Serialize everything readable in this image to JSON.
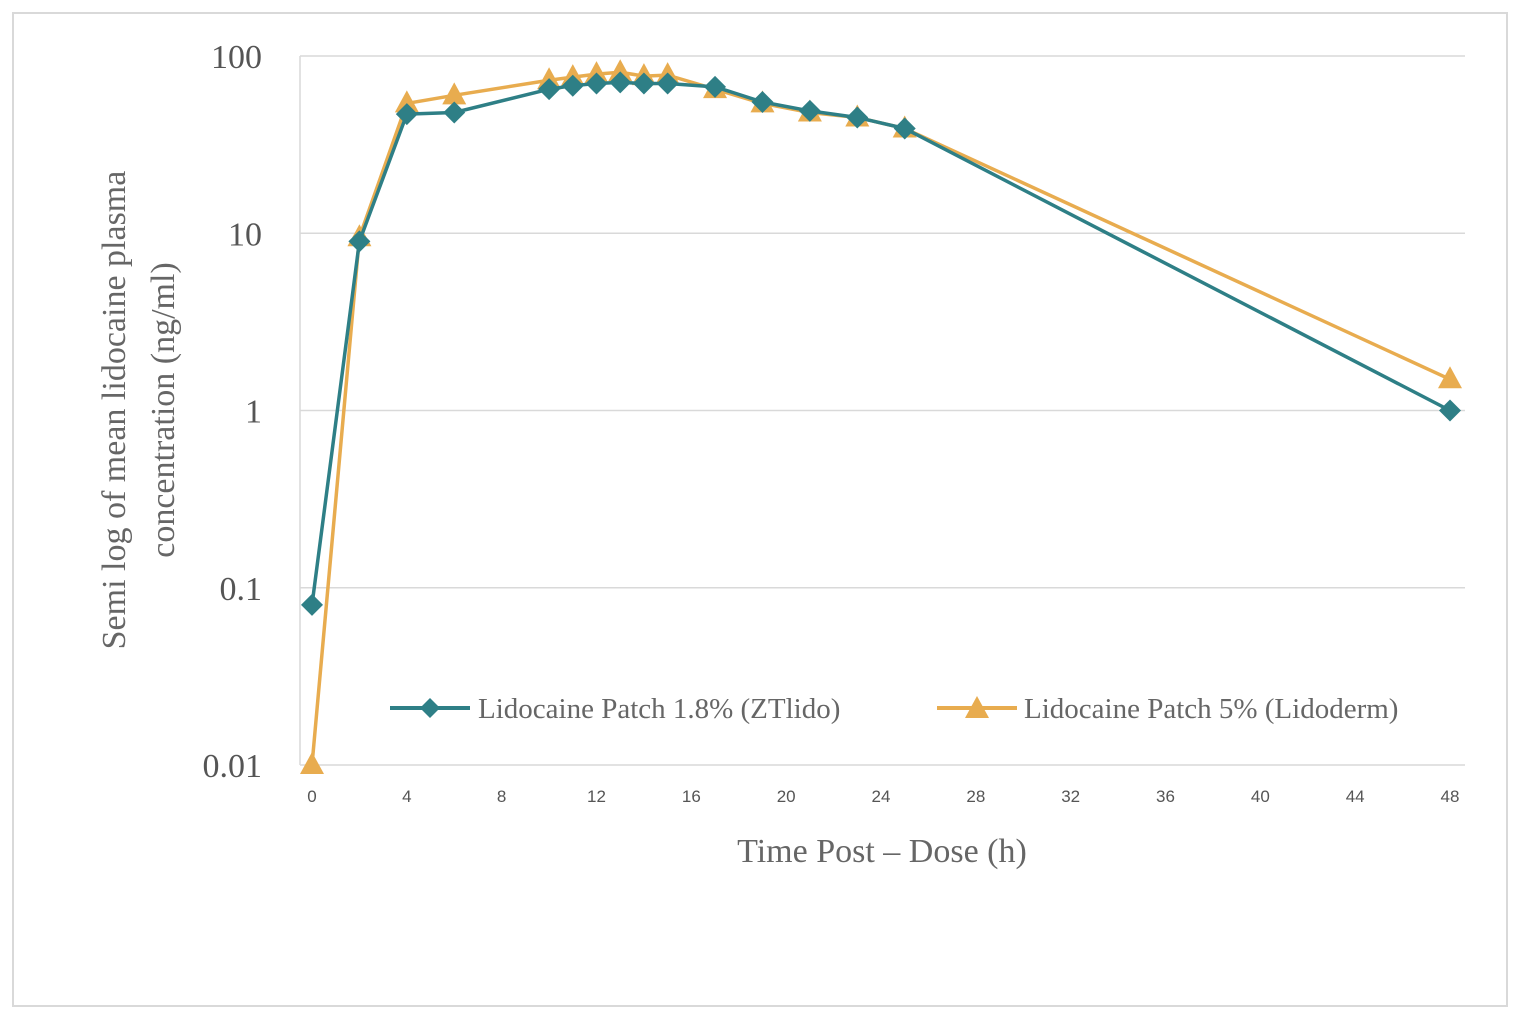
{
  "chart_data": {
    "type": "line",
    "title": "",
    "xlabel": "Time Post – Dose (h)",
    "ylabel_lines": [
      "Semi log of mean lidocaine plasma",
      "concentration (ng/ml)"
    ],
    "yscale": "log",
    "ylim": [
      0.01,
      100
    ],
    "xlim": [
      0,
      48
    ],
    "x_ticks": [
      "0",
      "4",
      "8",
      "12",
      "16",
      "20",
      "24",
      "28",
      "32",
      "36",
      "40",
      "44",
      "48"
    ],
    "y_ticks": [
      "100",
      "10",
      "1",
      "0.1",
      "0.01"
    ],
    "grid": "horizontal",
    "legend_position": "bottom-right",
    "series": [
      {
        "name": "Lidocaine Patch 1.8% (ZTlido)",
        "color": "#2e7f86",
        "marker": "diamond",
        "x": [
          0,
          2,
          4,
          6,
          10,
          11,
          12,
          13,
          14,
          15,
          17,
          19,
          21,
          23,
          25,
          48
        ],
        "y": [
          0.08,
          9,
          47,
          48,
          65,
          68,
          70,
          71,
          70,
          70,
          67,
          55,
          49,
          45,
          39,
          1.0
        ]
      },
      {
        "name": "Lidocaine Patch 5% (Lidoderm)",
        "color": "#e8ac4f",
        "marker": "triangle",
        "x": [
          0,
          2,
          4,
          6,
          10,
          11,
          12,
          13,
          14,
          15,
          17,
          19,
          21,
          23,
          25,
          48
        ],
        "y": [
          0.01,
          9.5,
          54,
          60,
          73,
          76,
          79,
          81,
          77,
          78,
          65,
          54,
          48,
          45,
          39,
          1.5
        ]
      }
    ]
  }
}
